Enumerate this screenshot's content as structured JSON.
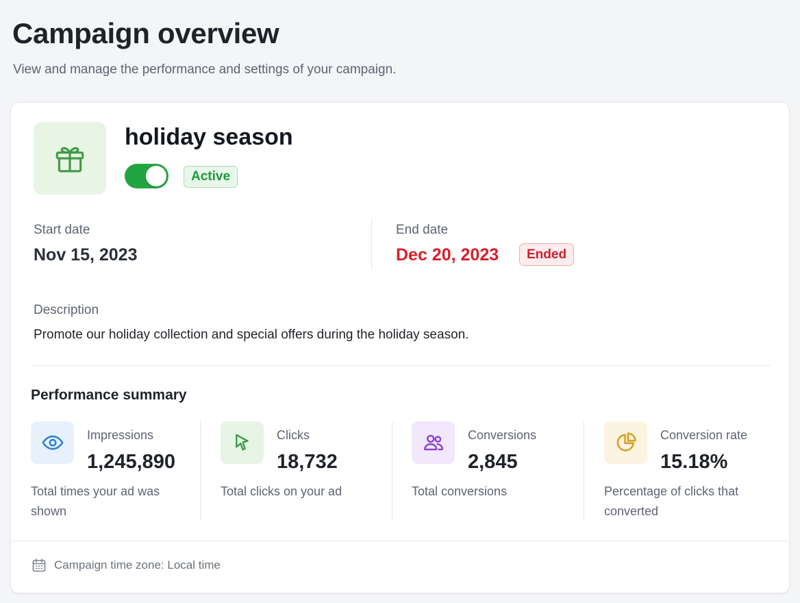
{
  "header": {
    "title": "Campaign overview",
    "subtitle": "View and manage the performance and settings of your campaign."
  },
  "campaign": {
    "icon": "gift-icon",
    "name": "holiday season",
    "enabled": true,
    "status_label": "Active",
    "accent_color": "#22a541"
  },
  "dates": {
    "start_label": "Start date",
    "start_value": "Nov 15, 2023",
    "end_label": "End date",
    "end_value": "Dec 20, 2023",
    "end_status": "Ended",
    "end_color": "#d5202a"
  },
  "description": {
    "label": "Description",
    "text": "Promote our holiday collection and special offers during the holiday season."
  },
  "performance": {
    "title": "Performance summary",
    "metrics": [
      {
        "icon": "eye-icon",
        "label": "Impressions",
        "value": "1,245,890",
        "desc": "Total times your ad was shown",
        "color": "#2f7fd6",
        "bg": "#e7f1fc"
      },
      {
        "icon": "cursor-icon",
        "label": "Clicks",
        "value": "18,732",
        "desc": "Total clicks on your ad",
        "color": "#2e9a3e",
        "bg": "#e7f4e5"
      },
      {
        "icon": "users-icon",
        "label": "Conversions",
        "value": "2,845",
        "desc": "Total conversions",
        "color": "#8a3fd1",
        "bg": "#f1e8fb"
      },
      {
        "icon": "pie-chart-icon",
        "label": "Conversion rate",
        "value": "15.18%",
        "desc": "Percentage of clicks that converted",
        "color": "#d6a020",
        "bg": "#fdf3e1"
      }
    ]
  },
  "footer": {
    "icon": "calendar-icon",
    "text": "Campaign time zone: Local time"
  }
}
